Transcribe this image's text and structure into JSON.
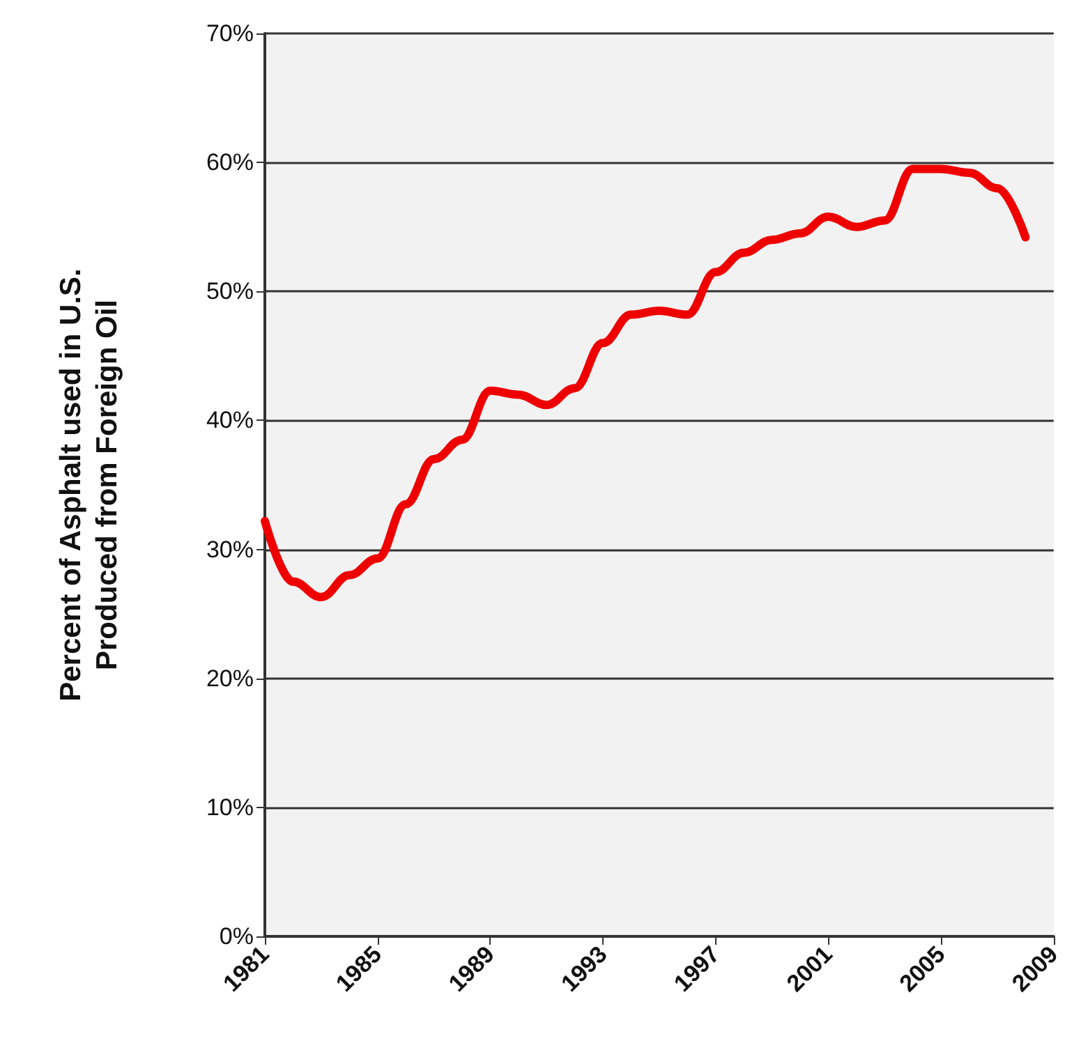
{
  "chart_data": {
    "type": "line",
    "ylabel": "Percent of Asphalt used in U.S.\nProduced from Foreign Oil",
    "x": [
      1981,
      1982,
      1983,
      1984,
      1985,
      1986,
      1987,
      1988,
      1989,
      1990,
      1991,
      1992,
      1993,
      1994,
      1995,
      1996,
      1997,
      1998,
      1999,
      2000,
      2001,
      2002,
      2003,
      2004,
      2005,
      2006,
      2007,
      2008
    ],
    "series": [
      {
        "color": "#ee0000",
        "values": [
          32.2,
          27.5,
          26.3,
          28,
          29.3,
          33.5,
          37,
          38.5,
          42.3,
          42,
          41.2,
          42.5,
          46,
          48.2,
          48.5,
          48.2,
          51.5,
          53,
          54,
          54.5,
          55.8,
          55,
          55.5,
          59.5,
          59.5,
          59.2,
          58,
          54.2
        ]
      }
    ],
    "xlim": [
      1981,
      2009
    ],
    "xticks": [
      1981,
      1985,
      1989,
      1993,
      1997,
      2001,
      2005,
      2009
    ],
    "ylim": [
      0,
      70
    ],
    "yticks": [
      {
        "value": 0,
        "label": "0%"
      },
      {
        "value": 10,
        "label": "10%"
      },
      {
        "value": 20,
        "label": "20%"
      },
      {
        "value": 30,
        "label": "30%"
      },
      {
        "value": 40,
        "label": "40%"
      },
      {
        "value": 50,
        "label": "50%"
      },
      {
        "value": 60,
        "label": "60%"
      },
      {
        "value": 70,
        "label": "70%"
      }
    ],
    "grid": "y",
    "marker": "none",
    "line_style": "solid"
  }
}
